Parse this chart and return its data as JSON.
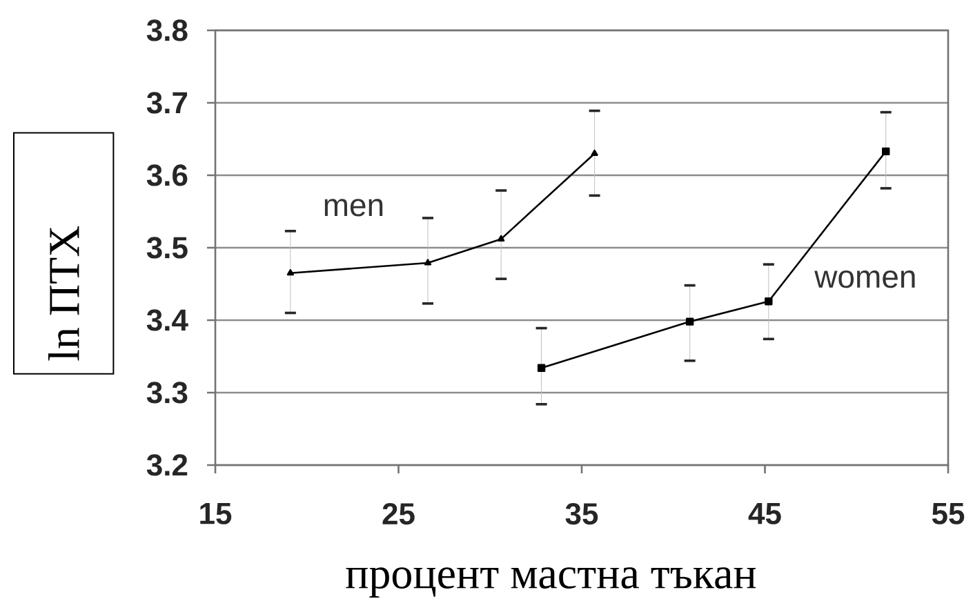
{
  "chart_data": {
    "type": "line",
    "xlabel": "процент мастна тъкан",
    "ylabel": "ln ПТХ",
    "xlim": [
      15,
      55
    ],
    "xticks": [
      15,
      25,
      35,
      45,
      55
    ],
    "ylim": [
      3.2,
      3.8
    ],
    "yticks": [
      3.2,
      3.3,
      3.4,
      3.5,
      3.6,
      3.7,
      3.8
    ],
    "grid": "y",
    "line_style": "solid",
    "series": [
      {
        "name": "men",
        "color": "#000000",
        "marker": "triangle",
        "x": [
          19.1,
          26.6,
          30.6,
          35.7
        ],
        "values": [
          3.465,
          3.479,
          3.512,
          3.63
        ],
        "errors": [
          [
            3.41,
            3.523
          ],
          [
            3.423,
            3.541
          ],
          [
            3.457,
            3.579
          ],
          [
            3.572,
            3.689
          ]
        ]
      },
      {
        "name": "women",
        "color": "#000000",
        "marker": "square",
        "x": [
          32.8,
          40.9,
          45.2,
          51.6
        ],
        "values": [
          3.334,
          3.398,
          3.426,
          3.633
        ],
        "errors": [
          [
            3.284,
            3.389
          ],
          [
            3.344,
            3.448
          ],
          [
            3.374,
            3.477
          ],
          [
            3.582,
            3.687
          ]
        ]
      }
    ]
  }
}
